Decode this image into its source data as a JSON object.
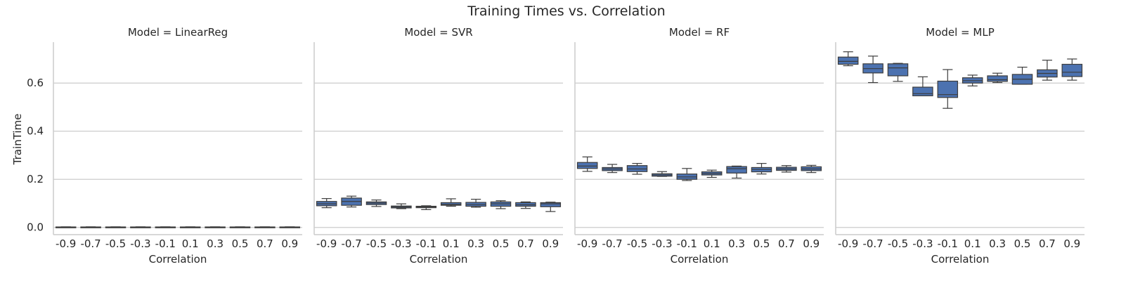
{
  "chart_data": {
    "type": "box",
    "title": "Training Times vs. Correlation",
    "xlabel": "Correlation",
    "ylabel": "TrainTime",
    "ylim": [
      -0.03,
      0.77
    ],
    "yticks": [
      0.0,
      0.2,
      0.4,
      0.6
    ],
    "ytick_labels": [
      "0.0",
      "0.2",
      "0.4",
      "0.6"
    ],
    "grid": "horizontal",
    "box_color": "#4c72b0",
    "categories": [
      "-0.9",
      "-0.7",
      "-0.5",
      "-0.3",
      "-0.1",
      "0.1",
      "0.3",
      "0.5",
      "0.7",
      "0.9"
    ],
    "facets": [
      {
        "title": "Model = LinearReg",
        "boxes": [
          {
            "wlo": 0.0006,
            "q1": 0.001,
            "med": 0.0015,
            "q3": 0.002,
            "whi": 0.0025
          },
          {
            "wlo": 0.0006,
            "q1": 0.001,
            "med": 0.0015,
            "q3": 0.002,
            "whi": 0.0025
          },
          {
            "wlo": 0.0006,
            "q1": 0.001,
            "med": 0.0015,
            "q3": 0.002,
            "whi": 0.0025
          },
          {
            "wlo": 0.0006,
            "q1": 0.001,
            "med": 0.0015,
            "q3": 0.002,
            "whi": 0.0025
          },
          {
            "wlo": 0.0006,
            "q1": 0.001,
            "med": 0.0015,
            "q3": 0.002,
            "whi": 0.0025
          },
          {
            "wlo": 0.0006,
            "q1": 0.001,
            "med": 0.0015,
            "q3": 0.002,
            "whi": 0.0025
          },
          {
            "wlo": 0.0006,
            "q1": 0.001,
            "med": 0.0015,
            "q3": 0.002,
            "whi": 0.0025
          },
          {
            "wlo": 0.0006,
            "q1": 0.001,
            "med": 0.0015,
            "q3": 0.002,
            "whi": 0.0025
          },
          {
            "wlo": 0.0006,
            "q1": 0.001,
            "med": 0.0015,
            "q3": 0.002,
            "whi": 0.0025
          },
          {
            "wlo": 0.0006,
            "q1": 0.001,
            "med": 0.0015,
            "q3": 0.002,
            "whi": 0.0025
          }
        ]
      },
      {
        "title": "Model = SVR",
        "boxes": [
          {
            "wlo": 0.082,
            "q1": 0.09,
            "med": 0.098,
            "q3": 0.108,
            "whi": 0.12
          },
          {
            "wlo": 0.085,
            "q1": 0.092,
            "med": 0.108,
            "q3": 0.122,
            "whi": 0.13
          },
          {
            "wlo": 0.087,
            "q1": 0.095,
            "med": 0.101,
            "q3": 0.106,
            "whi": 0.114
          },
          {
            "wlo": 0.078,
            "q1": 0.081,
            "med": 0.085,
            "q3": 0.089,
            "whi": 0.098
          },
          {
            "wlo": 0.074,
            "q1": 0.082,
            "med": 0.085,
            "q3": 0.088,
            "whi": 0.09
          },
          {
            "wlo": 0.088,
            "q1": 0.092,
            "med": 0.096,
            "q3": 0.103,
            "whi": 0.119
          },
          {
            "wlo": 0.084,
            "q1": 0.088,
            "med": 0.095,
            "q3": 0.104,
            "whi": 0.117
          },
          {
            "wlo": 0.078,
            "q1": 0.088,
            "med": 0.098,
            "q3": 0.106,
            "whi": 0.111
          },
          {
            "wlo": 0.079,
            "q1": 0.088,
            "med": 0.094,
            "q3": 0.103,
            "whi": 0.106
          },
          {
            "wlo": 0.066,
            "q1": 0.086,
            "med": 0.098,
            "q3": 0.103,
            "whi": 0.105
          }
        ]
      },
      {
        "title": "Model = RF",
        "boxes": [
          {
            "wlo": 0.233,
            "q1": 0.245,
            "med": 0.255,
            "q3": 0.27,
            "whi": 0.293
          },
          {
            "wlo": 0.228,
            "q1": 0.236,
            "med": 0.243,
            "q3": 0.249,
            "whi": 0.262
          },
          {
            "wlo": 0.221,
            "q1": 0.232,
            "med": 0.243,
            "q3": 0.257,
            "whi": 0.266
          },
          {
            "wlo": 0.212,
            "q1": 0.213,
            "med": 0.218,
            "q3": 0.223,
            "whi": 0.232
          },
          {
            "wlo": 0.195,
            "q1": 0.2,
            "med": 0.21,
            "q3": 0.222,
            "whi": 0.245
          },
          {
            "wlo": 0.208,
            "q1": 0.218,
            "med": 0.224,
            "q3": 0.231,
            "whi": 0.238
          },
          {
            "wlo": 0.205,
            "q1": 0.226,
            "med": 0.244,
            "q3": 0.253,
            "whi": 0.255
          },
          {
            "wlo": 0.222,
            "q1": 0.231,
            "med": 0.241,
            "q3": 0.249,
            "whi": 0.266
          },
          {
            "wlo": 0.23,
            "q1": 0.237,
            "med": 0.243,
            "q3": 0.25,
            "whi": 0.257
          },
          {
            "wlo": 0.228,
            "q1": 0.236,
            "med": 0.243,
            "q3": 0.252,
            "whi": 0.258
          }
        ]
      },
      {
        "title": "Model = MLP",
        "boxes": [
          {
            "wlo": 0.672,
            "q1": 0.678,
            "med": 0.69,
            "q3": 0.708,
            "whi": 0.73
          },
          {
            "wlo": 0.602,
            "q1": 0.642,
            "med": 0.66,
            "q3": 0.68,
            "whi": 0.712
          },
          {
            "wlo": 0.607,
            "q1": 0.63,
            "med": 0.663,
            "q3": 0.68,
            "whi": 0.682
          },
          {
            "wlo": 0.548,
            "q1": 0.547,
            "med": 0.556,
            "q3": 0.583,
            "whi": 0.626
          },
          {
            "wlo": 0.495,
            "q1": 0.54,
            "med": 0.552,
            "q3": 0.608,
            "whi": 0.656
          },
          {
            "wlo": 0.588,
            "q1": 0.6,
            "med": 0.61,
            "q3": 0.622,
            "whi": 0.633
          },
          {
            "wlo": 0.602,
            "q1": 0.607,
            "med": 0.614,
            "q3": 0.63,
            "whi": 0.641
          },
          {
            "wlo": 0.595,
            "q1": 0.595,
            "med": 0.616,
            "q3": 0.636,
            "whi": 0.666
          },
          {
            "wlo": 0.612,
            "q1": 0.625,
            "med": 0.64,
            "q3": 0.655,
            "whi": 0.695
          },
          {
            "wlo": 0.612,
            "q1": 0.627,
            "med": 0.645,
            "q3": 0.678,
            "whi": 0.7
          }
        ]
      }
    ]
  }
}
